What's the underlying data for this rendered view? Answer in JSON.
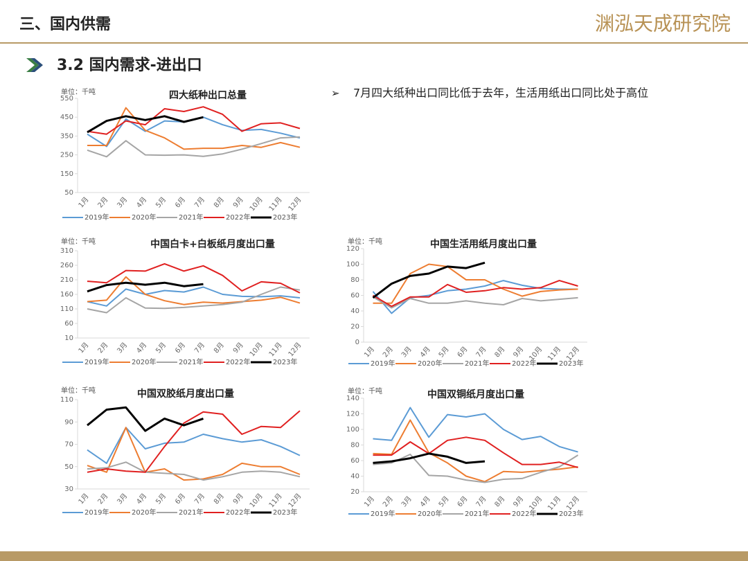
{
  "header": {
    "section": "三、国内供需",
    "logo": "渊泓天成研究院",
    "subtitle": "3.2 国内需求-进出口",
    "bullet": "7月四大纸种出口同比低于去年，生活用纸出口同比处于高位"
  },
  "chart_data": [
    {
      "type": "line",
      "title": "四大纸种出口总量",
      "unit": "单位：千吨",
      "categories": [
        "1月",
        "2月",
        "3月",
        "4月",
        "5月",
        "6月",
        "7月",
        "8月",
        "9月",
        "10月",
        "11月",
        "12月"
      ],
      "ylim": [
        50,
        550
      ],
      "yticks": [
        50,
        150,
        250,
        350,
        450,
        550
      ],
      "series": [
        {
          "name": "2019年",
          "color": "#5b9bd5",
          "values": [
            360,
            295,
            440,
            375,
            430,
            425,
            450,
            410,
            380,
            385,
            365,
            340
          ]
        },
        {
          "name": "2020年",
          "color": "#ed7d31",
          "values": [
            300,
            300,
            500,
            380,
            340,
            280,
            285,
            285,
            300,
            290,
            315,
            290
          ]
        },
        {
          "name": "2021年",
          "color": "#a5a5a5",
          "values": [
            275,
            240,
            325,
            250,
            248,
            250,
            242,
            255,
            280,
            310,
            340,
            345
          ]
        },
        {
          "name": "2022年",
          "color": "#e02020",
          "values": [
            375,
            360,
            430,
            410,
            495,
            480,
            505,
            465,
            375,
            415,
            420,
            390
          ]
        },
        {
          "name": "2023年",
          "color": "#000000",
          "values": [
            370,
            430,
            455,
            435,
            455,
            425,
            450,
            null,
            null,
            null,
            null,
            null
          ]
        }
      ]
    },
    {
      "type": "line",
      "title": "中国白卡+白板纸月度出口量",
      "unit": "单位：千吨",
      "categories": [
        "1月",
        "2月",
        "3月",
        "4月",
        "5月",
        "6月",
        "7月",
        "8月",
        "9月",
        "10月",
        "11月",
        "12月"
      ],
      "ylim": [
        10,
        310
      ],
      "yticks": [
        10,
        60,
        110,
        160,
        210,
        260,
        310
      ],
      "series": [
        {
          "name": "2019年",
          "color": "#5b9bd5",
          "values": [
            135,
            120,
            178,
            160,
            173,
            168,
            185,
            160,
            153,
            152,
            155,
            148
          ]
        },
        {
          "name": "2020年",
          "color": "#ed7d31",
          "values": [
            135,
            140,
            220,
            160,
            138,
            125,
            133,
            130,
            135,
            140,
            150,
            130
          ]
        },
        {
          "name": "2021年",
          "color": "#a5a5a5",
          "values": [
            110,
            97,
            148,
            113,
            112,
            115,
            120,
            125,
            133,
            160,
            185,
            175
          ]
        },
        {
          "name": "2022年",
          "color": "#e02020",
          "values": [
            205,
            200,
            242,
            240,
            265,
            240,
            258,
            225,
            172,
            203,
            198,
            165
          ]
        },
        {
          "name": "2023年",
          "color": "#000000",
          "values": [
            170,
            192,
            200,
            193,
            200,
            188,
            195,
            null,
            null,
            null,
            null,
            null
          ]
        }
      ]
    },
    {
      "type": "line",
      "title": "中国生活用纸月度出口量",
      "unit": "单位：千吨",
      "categories": [
        "1月",
        "2月",
        "3月",
        "4月",
        "5月",
        "6月",
        "7月",
        "8月",
        "9月",
        "10月",
        "11月",
        "12月"
      ],
      "ylim": [
        0,
        120
      ],
      "yticks": [
        0,
        20,
        40,
        60,
        80,
        100,
        120
      ],
      "series": [
        {
          "name": "2019年",
          "color": "#5b9bd5",
          "values": [
            65,
            37,
            57,
            60,
            66,
            68,
            72,
            79,
            73,
            69,
            68,
            68
          ]
        },
        {
          "name": "2020年",
          "color": "#ed7d31",
          "values": [
            50,
            50,
            88,
            100,
            97,
            80,
            80,
            68,
            59,
            65,
            67,
            68
          ]
        },
        {
          "name": "2021年",
          "color": "#a5a5a5",
          "values": [
            58,
            44,
            56,
            50,
            50,
            53,
            50,
            48,
            56,
            53,
            55,
            57
          ]
        },
        {
          "name": "2022年",
          "color": "#e02020",
          "values": [
            60,
            46,
            58,
            58,
            74,
            64,
            66,
            70,
            68,
            70,
            79,
            72
          ]
        },
        {
          "name": "2023年",
          "color": "#000000",
          "values": [
            57,
            75,
            85,
            88,
            97,
            95,
            102,
            null,
            null,
            null,
            null,
            null
          ]
        }
      ]
    },
    {
      "type": "line",
      "title": "中国双胶纸月度出口量",
      "unit": "单位：千吨",
      "categories": [
        "1月",
        "2月",
        "3月",
        "4月",
        "5月",
        "6月",
        "7月",
        "8月",
        "9月",
        "10月",
        "11月",
        "12月"
      ],
      "ylim": [
        30,
        110
      ],
      "yticks": [
        30,
        50,
        70,
        90,
        110
      ],
      "series": [
        {
          "name": "2019年",
          "color": "#5b9bd5",
          "values": [
            65,
            53,
            85,
            66,
            71,
            72,
            79,
            75,
            72,
            74,
            68,
            60
          ]
        },
        {
          "name": "2020年",
          "color": "#ed7d31",
          "values": [
            51,
            45,
            85,
            45,
            48,
            38,
            39,
            43,
            53,
            50,
            50,
            43
          ]
        },
        {
          "name": "2021年",
          "color": "#a5a5a5",
          "values": [
            48,
            49,
            54,
            45,
            44,
            43,
            38,
            41,
            45,
            46,
            45,
            41
          ]
        },
        {
          "name": "2022年",
          "color": "#e02020",
          "values": [
            45,
            48,
            46,
            45,
            68,
            89,
            99,
            97,
            79,
            86,
            85,
            100
          ]
        },
        {
          "name": "2023年",
          "color": "#000000",
          "values": [
            87,
            101,
            103,
            82,
            93,
            87,
            93,
            null,
            null,
            null,
            null,
            null
          ]
        }
      ]
    },
    {
      "type": "line",
      "title": "中国双铜纸月度出口量",
      "unit": "单位：千吨",
      "categories": [
        "1月",
        "2月",
        "3月",
        "4月",
        "5月",
        "6月",
        "7月",
        "8月",
        "9月",
        "10月",
        "11月",
        "12月"
      ],
      "ylim": [
        20,
        140
      ],
      "yticks": [
        20,
        40,
        60,
        80,
        100,
        120,
        140
      ],
      "series": [
        {
          "name": "2019年",
          "color": "#5b9bd5",
          "values": [
            88,
            86,
            128,
            90,
            119,
            116,
            120,
            100,
            87,
            91,
            78,
            71
          ]
        },
        {
          "name": "2020年",
          "color": "#ed7d31",
          "values": [
            69,
            68,
            112,
            70,
            57,
            40,
            33,
            46,
            45,
            47,
            49,
            52
          ]
        },
        {
          "name": "2021年",
          "color": "#a5a5a5",
          "values": [
            55,
            57,
            68,
            41,
            40,
            35,
            32,
            36,
            37,
            45,
            52,
            67
          ]
        },
        {
          "name": "2022年",
          "color": "#e02020",
          "values": [
            67,
            67,
            84,
            69,
            86,
            90,
            86,
            70,
            55,
            55,
            58,
            51
          ]
        },
        {
          "name": "2023年",
          "color": "#000000",
          "values": [
            57,
            59,
            63,
            69,
            65,
            57,
            59,
            null,
            null,
            null,
            null,
            null
          ]
        }
      ]
    }
  ]
}
